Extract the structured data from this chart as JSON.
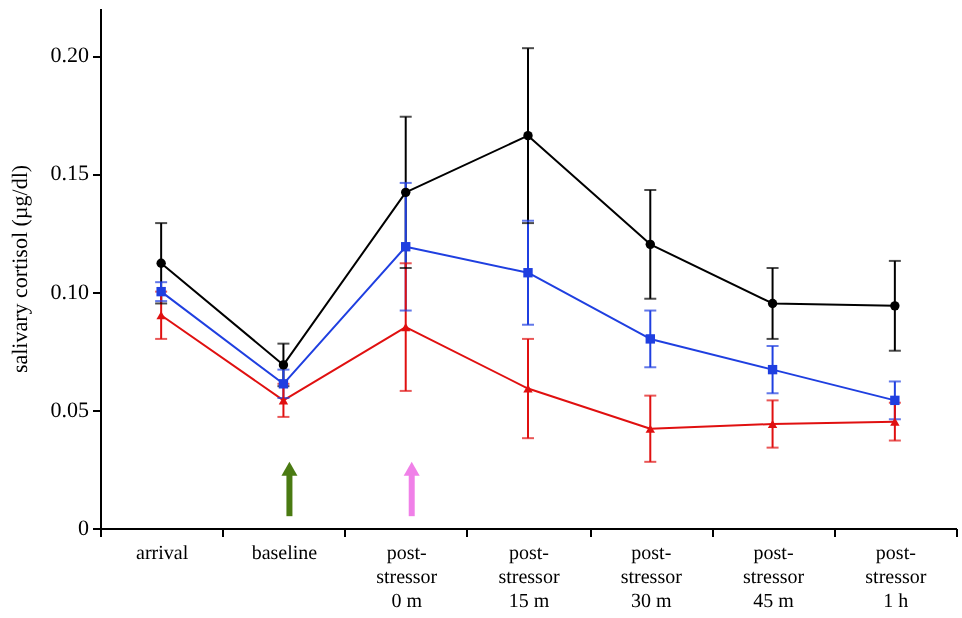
{
  "chart_data": {
    "type": "line",
    "ylabel": "salivary cortisol (µg/dl)",
    "categories": [
      "arrival",
      "baseline",
      "post-stressor 0 m",
      "post-stressor 15 m",
      "post-stressor 30 m",
      "post-stressor 45 m",
      "post-stressor 1 h"
    ],
    "ylim": [
      0,
      0.22
    ],
    "yticks": [
      0,
      0.05,
      {
        "value": 0.1,
        "label": "0.10"
      },
      0.15,
      {
        "value": 0.2,
        "label": "0.20"
      }
    ],
    "grid": false,
    "line_style": "solid",
    "series": [
      {
        "color": "#000000",
        "marker": "circle",
        "values": [
          0.112,
          0.069,
          0.142,
          0.166,
          0.12,
          0.095,
          0.094
        ],
        "errors": [
          0.017,
          0.009,
          0.032,
          0.037,
          0.023,
          0.015,
          0.019
        ]
      },
      {
        "color": "#1f3fe0",
        "marker": "square",
        "values": [
          0.1,
          0.061,
          0.119,
          0.108,
          0.08,
          0.067,
          0.054
        ],
        "errors": [
          0.004,
          0.006,
          0.027,
          0.022,
          0.012,
          0.01,
          0.008
        ]
      },
      {
        "color": "#e01010",
        "marker": "triangle",
        "values": [
          0.09,
          0.054,
          0.085,
          0.059,
          0.042,
          0.044,
          0.045
        ],
        "errors": [
          0.01,
          0.007,
          0.027,
          0.021,
          0.014,
          0.01,
          0.008
        ]
      }
    ]
  }
}
